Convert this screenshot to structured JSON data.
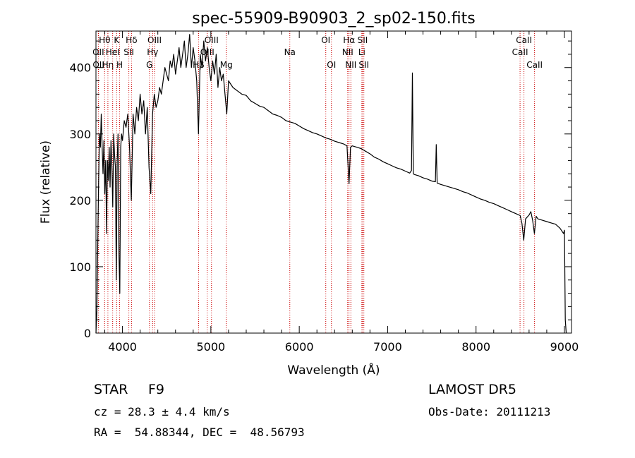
{
  "chart_data": {
    "type": "line",
    "title": "spec-55909-B90903_2_sp02-150.fits",
    "xlabel": "Wavelength (Å)",
    "ylabel": "Flux (relative)",
    "xlim": [
      3700,
      9080
    ],
    "ylim": [
      0,
      455
    ],
    "x_ticks": [
      4000,
      5000,
      6000,
      7000,
      8000,
      9000
    ],
    "y_ticks": [
      0,
      100,
      200,
      300,
      400
    ],
    "grid": false,
    "line_color": "#000000",
    "marker_color": "#cc0000",
    "series": [
      {
        "points": [
          [
            3700,
            0
          ],
          [
            3710,
            35
          ],
          [
            3720,
            130
          ],
          [
            3730,
            230
          ],
          [
            3740,
            300
          ],
          [
            3750,
            280
          ],
          [
            3760,
            330
          ],
          [
            3770,
            280
          ],
          [
            3780,
            240
          ],
          [
            3790,
            290
          ],
          [
            3800,
            210
          ],
          [
            3810,
            260
          ],
          [
            3820,
            150
          ],
          [
            3830,
            260
          ],
          [
            3840,
            230
          ],
          [
            3850,
            280
          ],
          [
            3860,
            220
          ],
          [
            3870,
            290
          ],
          [
            3880,
            250
          ],
          [
            3890,
            190
          ],
          [
            3900,
            300
          ],
          [
            3910,
            270
          ],
          [
            3920,
            250
          ],
          [
            3930,
            80
          ],
          [
            3940,
            260
          ],
          [
            3950,
            300
          ],
          [
            3960,
            120
          ],
          [
            3970,
            60
          ],
          [
            3980,
            280
          ],
          [
            3990,
            300
          ],
          [
            4000,
            290
          ],
          [
            4020,
            320
          ],
          [
            4040,
            310
          ],
          [
            4060,
            330
          ],
          [
            4080,
            280
          ],
          [
            4100,
            200
          ],
          [
            4120,
            330
          ],
          [
            4140,
            300
          ],
          [
            4160,
            340
          ],
          [
            4180,
            320
          ],
          [
            4200,
            360
          ],
          [
            4220,
            330
          ],
          [
            4240,
            350
          ],
          [
            4260,
            300
          ],
          [
            4280,
            340
          ],
          [
            4300,
            250
          ],
          [
            4320,
            210
          ],
          [
            4340,
            330
          ],
          [
            4360,
            360
          ],
          [
            4380,
            340
          ],
          [
            4400,
            350
          ],
          [
            4420,
            370
          ],
          [
            4440,
            360
          ],
          [
            4460,
            380
          ],
          [
            4480,
            400
          ],
          [
            4500,
            390
          ],
          [
            4520,
            380
          ],
          [
            4540,
            410
          ],
          [
            4560,
            400
          ],
          [
            4580,
            420
          ],
          [
            4600,
            390
          ],
          [
            4620,
            410
          ],
          [
            4640,
            430
          ],
          [
            4660,
            400
          ],
          [
            4680,
            420
          ],
          [
            4700,
            440
          ],
          [
            4720,
            400
          ],
          [
            4740,
            420
          ],
          [
            4760,
            450
          ],
          [
            4780,
            400
          ],
          [
            4800,
            430
          ],
          [
            4820,
            410
          ],
          [
            4840,
            380
          ],
          [
            4860,
            300
          ],
          [
            4880,
            420
          ],
          [
            4900,
            400
          ],
          [
            4920,
            440
          ],
          [
            4940,
            410
          ],
          [
            4960,
            430
          ],
          [
            4980,
            400
          ],
          [
            5000,
            380
          ],
          [
            5020,
            410
          ],
          [
            5040,
            390
          ],
          [
            5060,
            420
          ],
          [
            5080,
            370
          ],
          [
            5100,
            400
          ],
          [
            5120,
            380
          ],
          [
            5140,
            390
          ],
          [
            5160,
            360
          ],
          [
            5180,
            330
          ],
          [
            5200,
            380
          ],
          [
            5250,
            370
          ],
          [
            5300,
            365
          ],
          [
            5350,
            360
          ],
          [
            5400,
            358
          ],
          [
            5450,
            350
          ],
          [
            5500,
            346
          ],
          [
            5550,
            342
          ],
          [
            5600,
            340
          ],
          [
            5650,
            335
          ],
          [
            5700,
            330
          ],
          [
            5750,
            328
          ],
          [
            5800,
            325
          ],
          [
            5850,
            320
          ],
          [
            5900,
            318
          ],
          [
            5950,
            316
          ],
          [
            6000,
            312
          ],
          [
            6050,
            308
          ],
          [
            6100,
            305
          ],
          [
            6150,
            302
          ],
          [
            6200,
            300
          ],
          [
            6250,
            297
          ],
          [
            6300,
            294
          ],
          [
            6350,
            292
          ],
          [
            6400,
            289
          ],
          [
            6450,
            287
          ],
          [
            6500,
            285
          ],
          [
            6540,
            282
          ],
          [
            6563,
            225
          ],
          [
            6580,
            280
          ],
          [
            6600,
            282
          ],
          [
            6650,
            280
          ],
          [
            6700,
            278
          ],
          [
            6750,
            274
          ],
          [
            6800,
            270
          ],
          [
            6850,
            265
          ],
          [
            6900,
            262
          ],
          [
            6950,
            258
          ],
          [
            7000,
            255
          ],
          [
            7050,
            252
          ],
          [
            7100,
            249
          ],
          [
            7150,
            247
          ],
          [
            7200,
            244
          ],
          [
            7250,
            241
          ],
          [
            7270,
            245
          ],
          [
            7280,
            392
          ],
          [
            7290,
            240
          ],
          [
            7300,
            239
          ],
          [
            7350,
            237
          ],
          [
            7400,
            234
          ],
          [
            7450,
            232
          ],
          [
            7500,
            229
          ],
          [
            7540,
            228
          ],
          [
            7550,
            284
          ],
          [
            7560,
            226
          ],
          [
            7600,
            224
          ],
          [
            7650,
            222
          ],
          [
            7700,
            220
          ],
          [
            7750,
            218
          ],
          [
            7800,
            216
          ],
          [
            7850,
            213
          ],
          [
            7900,
            211
          ],
          [
            7950,
            208
          ],
          [
            8000,
            205
          ],
          [
            8050,
            202
          ],
          [
            8100,
            200
          ],
          [
            8150,
            197
          ],
          [
            8200,
            195
          ],
          [
            8250,
            192
          ],
          [
            8300,
            189
          ],
          [
            8350,
            186
          ],
          [
            8400,
            183
          ],
          [
            8450,
            180
          ],
          [
            8500,
            177
          ],
          [
            8520,
            165
          ],
          [
            8540,
            140
          ],
          [
            8560,
            172
          ],
          [
            8600,
            178
          ],
          [
            8620,
            183
          ],
          [
            8640,
            170
          ],
          [
            8660,
            150
          ],
          [
            8680,
            176
          ],
          [
            8700,
            172
          ],
          [
            8750,
            170
          ],
          [
            8800,
            168
          ],
          [
            8850,
            166
          ],
          [
            8900,
            164
          ],
          [
            8950,
            158
          ],
          [
            8990,
            150
          ],
          [
            9000,
            155
          ],
          [
            9010,
            20
          ],
          [
            9020,
            0
          ]
        ]
      }
    ],
    "spectral_lines": [
      {
        "label": "Hθ",
        "wavelength": 3798,
        "row": 0
      },
      {
        "label": "OII",
        "wavelength": 3727,
        "row": 1
      },
      {
        "label": "OII",
        "wavelength": 3729,
        "row": 2
      },
      {
        "label": "Hη",
        "wavelength": 3835,
        "row": 2
      },
      {
        "label": "K",
        "wavelength": 3934,
        "row": 0
      },
      {
        "label": "HeI",
        "wavelength": 3889,
        "row": 1
      },
      {
        "label": "H",
        "wavelength": 3968,
        "row": 2
      },
      {
        "label": "Hδ",
        "wavelength": 4102,
        "row": 0
      },
      {
        "label": "SII",
        "wavelength": 4072,
        "row": 1
      },
      {
        "label": "OIII",
        "wavelength": 4363,
        "row": 0
      },
      {
        "label": "Hγ",
        "wavelength": 4341,
        "row": 1
      },
      {
        "label": "G",
        "wavelength": 4305,
        "row": 2
      },
      {
        "label": "OIII",
        "wavelength": 5007,
        "row": 0
      },
      {
        "label": "OIII",
        "wavelength": 4959,
        "row": 1
      },
      {
        "label": "Hβ",
        "wavelength": 4861,
        "row": 2
      },
      {
        "label": "Mg",
        "wavelength": 5175,
        "row": 2
      },
      {
        "label": "Na",
        "wavelength": 5893,
        "row": 1
      },
      {
        "label": "OI",
        "wavelength": 6300,
        "row": 0
      },
      {
        "label": "OI",
        "wavelength": 6364,
        "row": 2
      },
      {
        "label": "Hα",
        "wavelength": 6563,
        "row": 0
      },
      {
        "label": "NII",
        "wavelength": 6548,
        "row": 1
      },
      {
        "label": "NII",
        "wavelength": 6584,
        "row": 2
      },
      {
        "label": "SII",
        "wavelength": 6717,
        "row": 0
      },
      {
        "label": "Li",
        "wavelength": 6708,
        "row": 1
      },
      {
        "label": "SII",
        "wavelength": 6731,
        "row": 2
      },
      {
        "label": "CaII",
        "wavelength": 8542,
        "row": 0
      },
      {
        "label": "CaII",
        "wavelength": 8498,
        "row": 1
      },
      {
        "label": "CaII",
        "wavelength": 8662,
        "row": 2
      }
    ]
  },
  "info": {
    "class": "STAR",
    "subclass": "F9",
    "survey": "LAMOST DR5",
    "cz": "cz = 28.3 ± 4.4 km/s",
    "obs_date": "Obs-Date: 20111213",
    "coords": "RA =  54.88344, DEC =  48.56793"
  }
}
